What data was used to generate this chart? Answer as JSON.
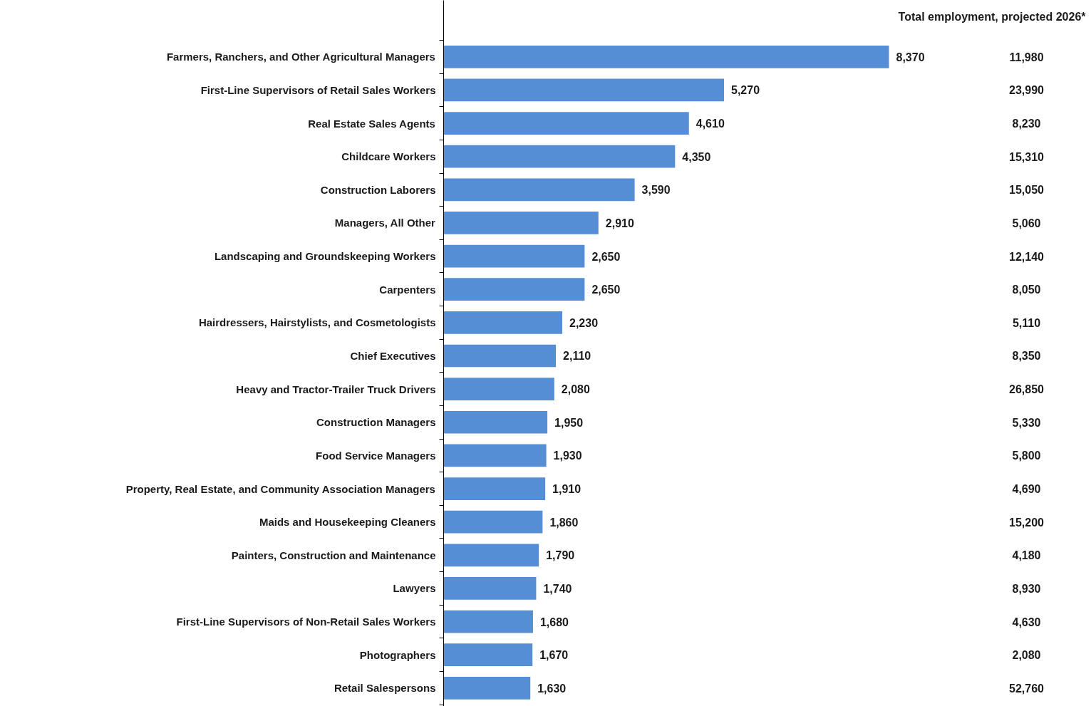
{
  "chart_data": {
    "type": "bar",
    "orientation": "horizontal",
    "grid": false,
    "categories": [
      "Farmers, Ranchers, and Other Agricultural Managers",
      "First-Line Supervisors of Retail Sales Workers",
      "Real Estate Sales Agents",
      "Childcare Workers",
      "Construction Laborers",
      "Managers, All Other",
      "Landscaping and Groundskeeping Workers",
      "Carpenters",
      "Hairdressers, Hairstylists, and Cosmetologists",
      "Chief Executives",
      "Heavy and Tractor-Trailer Truck Drivers",
      "Construction Managers",
      "Food Service Managers",
      "Property, Real Estate, and Community Association Managers",
      "Maids and Housekeeping Cleaners",
      "Painters, Construction and Maintenance",
      "Lawyers",
      "First-Line Supervisors of Non-Retail Sales Workers",
      "Photographers",
      "Retail Salespersons"
    ],
    "series": [
      {
        "color": "#558ed5",
        "values": [
          8370,
          5270,
          4610,
          4350,
          3590,
          2910,
          2650,
          2650,
          2230,
          2110,
          2080,
          1950,
          1930,
          1910,
          1860,
          1790,
          1740,
          1680,
          1670,
          1630
        ],
        "value_labels": [
          "8,370",
          "5,270",
          "4,610",
          "4,350",
          "3,590",
          "2,910",
          "2,650",
          "2,650",
          "2,230",
          "2,110",
          "2,080",
          "1,950",
          "1,930",
          "1,910",
          "1,860",
          "1,790",
          "1,740",
          "1,680",
          "1,670",
          "1,630"
        ]
      }
    ],
    "annotations": [
      "Total employment, projected 2026*",
      "11,980",
      "23,990",
      "8,230",
      "15,310",
      "15,050",
      "5,060",
      "12,140",
      "8,050",
      "5,110",
      "8,350",
      "26,850",
      "5,330",
      "5,800",
      "4,690",
      "15,200",
      "4,180",
      "8,930",
      "4,630",
      "2,080",
      "52,760"
    ]
  }
}
